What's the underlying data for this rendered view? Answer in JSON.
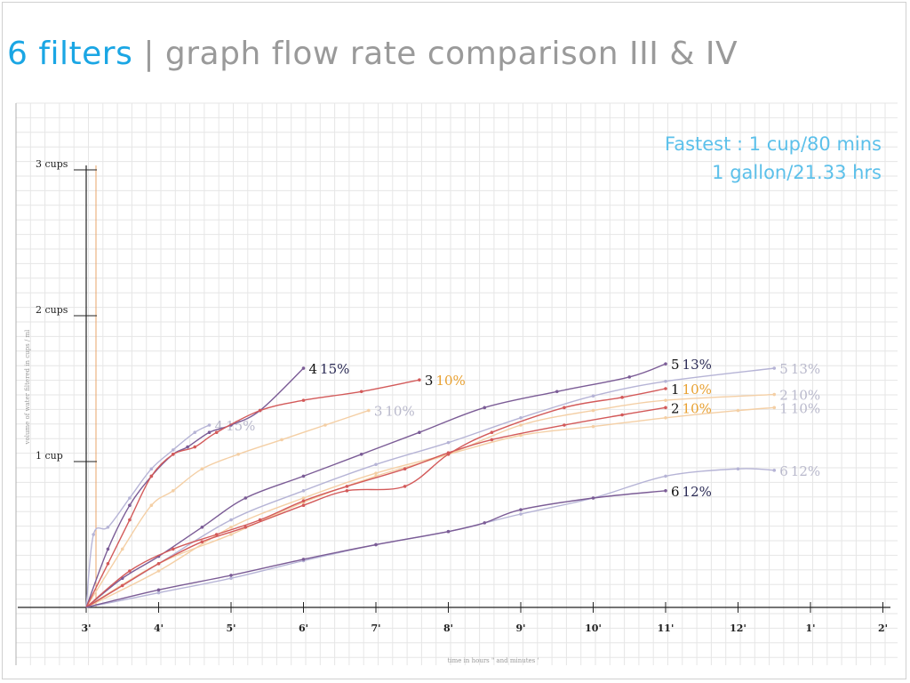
{
  "title": {
    "accent": "6 filters",
    "separator": "|",
    "rest": "graph flow rate comparison III & IV"
  },
  "notes": {
    "line1": "Fastest : 1 cup/80 mins",
    "line2": "1 gallon/21.33 hrs"
  },
  "chart_data": {
    "type": "line",
    "xlabel": "time in hours \" and minutes '",
    "ylabel": "volume of water filtered in cups / ml",
    "x_ticks": [
      "3'",
      "4'",
      "5'",
      "6'",
      "7'",
      "8'",
      "9'",
      "10'",
      "11'",
      "12'",
      "1'",
      "2'"
    ],
    "y_ticks": [
      {
        "value": 1,
        "label": "1 cup"
      },
      {
        "value": 2,
        "label": "2 cups"
      },
      {
        "value": 3,
        "label": "3 cups"
      }
    ],
    "xlim": [
      0,
      11
    ],
    "ylim": [
      0,
      3
    ],
    "grid": true,
    "colors": {
      "dark_purple": "#7b5c96",
      "red": "#d35a5a",
      "peach": "#f4cfa5",
      "lavender": "#b6b4d6",
      "label_dark": "#2b2b55",
      "label_orange": "#e8a030",
      "label_faded": "#b9b9cc"
    },
    "series": [
      {
        "label_num": "4",
        "label_pct": "15%",
        "style": "dark_purple",
        "points": [
          [
            0,
            0
          ],
          [
            0.3,
            0.4
          ],
          [
            0.6,
            0.7
          ],
          [
            0.9,
            0.9
          ],
          [
            1.2,
            1.05
          ],
          [
            1.4,
            1.1
          ],
          [
            1.7,
            1.2
          ],
          [
            2.0,
            1.25
          ],
          [
            2.4,
            1.35
          ],
          [
            3.0,
            1.64
          ]
        ]
      },
      {
        "label_num": "4",
        "label_pct": "15%",
        "style": "lavender",
        "points": [
          [
            0,
            0
          ],
          [
            0.1,
            0.5
          ],
          [
            0.3,
            0.55
          ],
          [
            0.6,
            0.75
          ],
          [
            0.9,
            0.95
          ],
          [
            1.2,
            1.08
          ],
          [
            1.5,
            1.2
          ],
          [
            1.7,
            1.25
          ]
        ]
      },
      {
        "label_num": "3",
        "label_pct": "10%",
        "style": "red",
        "points": [
          [
            0,
            0
          ],
          [
            0.3,
            0.3
          ],
          [
            0.6,
            0.6
          ],
          [
            0.9,
            0.9
          ],
          [
            1.2,
            1.05
          ],
          [
            1.5,
            1.1
          ],
          [
            1.8,
            1.2
          ],
          [
            2.4,
            1.35
          ],
          [
            3.0,
            1.42
          ],
          [
            3.8,
            1.48
          ],
          [
            4.6,
            1.56
          ]
        ]
      },
      {
        "label_num": "3",
        "label_pct": "10%",
        "style": "peach",
        "points": [
          [
            0,
            0
          ],
          [
            0.5,
            0.4
          ],
          [
            0.9,
            0.7
          ],
          [
            1.2,
            0.8
          ],
          [
            1.6,
            0.95
          ],
          [
            2.1,
            1.05
          ],
          [
            2.7,
            1.15
          ],
          [
            3.3,
            1.25
          ],
          [
            3.9,
            1.35
          ]
        ]
      },
      {
        "label_num": "5",
        "label_pct": "13%",
        "style": "dark_purple",
        "points": [
          [
            0,
            0
          ],
          [
            0.5,
            0.2
          ],
          [
            1.0,
            0.35
          ],
          [
            1.6,
            0.55
          ],
          [
            2.2,
            0.75
          ],
          [
            3.0,
            0.9
          ],
          [
            3.8,
            1.05
          ],
          [
            4.6,
            1.2
          ],
          [
            5.5,
            1.37
          ],
          [
            6.5,
            1.48
          ],
          [
            7.5,
            1.58
          ],
          [
            8.0,
            1.67
          ]
        ]
      },
      {
        "label_num": "5",
        "label_pct": "13%",
        "style": "lavender",
        "points": [
          [
            0,
            0
          ],
          [
            1.0,
            0.3
          ],
          [
            2.0,
            0.6
          ],
          [
            3.0,
            0.8
          ],
          [
            4.0,
            0.98
          ],
          [
            5.0,
            1.13
          ],
          [
            6.0,
            1.3
          ],
          [
            7.0,
            1.45
          ],
          [
            8.0,
            1.55
          ],
          [
            9.5,
            1.64
          ]
        ]
      },
      {
        "label_num": "1",
        "label_pct": "10%",
        "style": "red",
        "points": [
          [
            0,
            0
          ],
          [
            0.5,
            0.15
          ],
          [
            1.0,
            0.3
          ],
          [
            1.6,
            0.45
          ],
          [
            2.2,
            0.55
          ],
          [
            3.0,
            0.7
          ],
          [
            3.6,
            0.8
          ],
          [
            4.4,
            0.83
          ],
          [
            5.0,
            1.05
          ],
          [
            5.6,
            1.2
          ],
          [
            6.6,
            1.37
          ],
          [
            7.4,
            1.44
          ],
          [
            8.0,
            1.5
          ]
        ]
      },
      {
        "label_num": "1",
        "label_pct": "10%",
        "style": "peach",
        "points": [
          [
            0,
            0
          ],
          [
            1.0,
            0.25
          ],
          [
            2.0,
            0.55
          ],
          [
            3.0,
            0.75
          ],
          [
            4.0,
            0.92
          ],
          [
            5.0,
            1.05
          ],
          [
            6.0,
            1.18
          ],
          [
            7.0,
            1.24
          ],
          [
            8.0,
            1.3
          ],
          [
            9.0,
            1.35
          ],
          [
            9.5,
            1.37
          ]
        ]
      },
      {
        "label_num": "2",
        "label_pct": "10%",
        "style": "red",
        "points": [
          [
            0,
            0
          ],
          [
            0.6,
            0.25
          ],
          [
            1.2,
            0.4
          ],
          [
            1.8,
            0.5
          ],
          [
            2.4,
            0.6
          ],
          [
            3.0,
            0.73
          ],
          [
            3.6,
            0.83
          ],
          [
            4.4,
            0.95
          ],
          [
            5.0,
            1.06
          ],
          [
            5.6,
            1.15
          ],
          [
            6.6,
            1.25
          ],
          [
            7.4,
            1.32
          ],
          [
            8.0,
            1.37
          ]
        ]
      },
      {
        "label_num": "2",
        "label_pct": "10%",
        "style": "peach",
        "points": [
          [
            0,
            0
          ],
          [
            1.0,
            0.3
          ],
          [
            2.0,
            0.5
          ],
          [
            3.0,
            0.72
          ],
          [
            4.0,
            0.9
          ],
          [
            5.0,
            1.05
          ],
          [
            6.0,
            1.25
          ],
          [
            7.0,
            1.35
          ],
          [
            8.0,
            1.42
          ],
          [
            9.5,
            1.46
          ]
        ]
      },
      {
        "label_num": "6",
        "label_pct": "12%",
        "style": "dark_purple",
        "points": [
          [
            0,
            0
          ],
          [
            1.0,
            0.12
          ],
          [
            2.0,
            0.22
          ],
          [
            3.0,
            0.33
          ],
          [
            4.0,
            0.43
          ],
          [
            5.0,
            0.52
          ],
          [
            5.5,
            0.58
          ],
          [
            6.0,
            0.67
          ],
          [
            7.0,
            0.75
          ],
          [
            8.0,
            0.8
          ]
        ]
      },
      {
        "label_num": "6",
        "label_pct": "12%",
        "style": "lavender",
        "points": [
          [
            0,
            0
          ],
          [
            1.0,
            0.1
          ],
          [
            2.0,
            0.2
          ],
          [
            3.0,
            0.32
          ],
          [
            4.0,
            0.43
          ],
          [
            5.0,
            0.52
          ],
          [
            6.0,
            0.64
          ],
          [
            7.0,
            0.75
          ],
          [
            8.0,
            0.9
          ],
          [
            9.0,
            0.95
          ],
          [
            9.5,
            0.94
          ]
        ]
      }
    ]
  }
}
